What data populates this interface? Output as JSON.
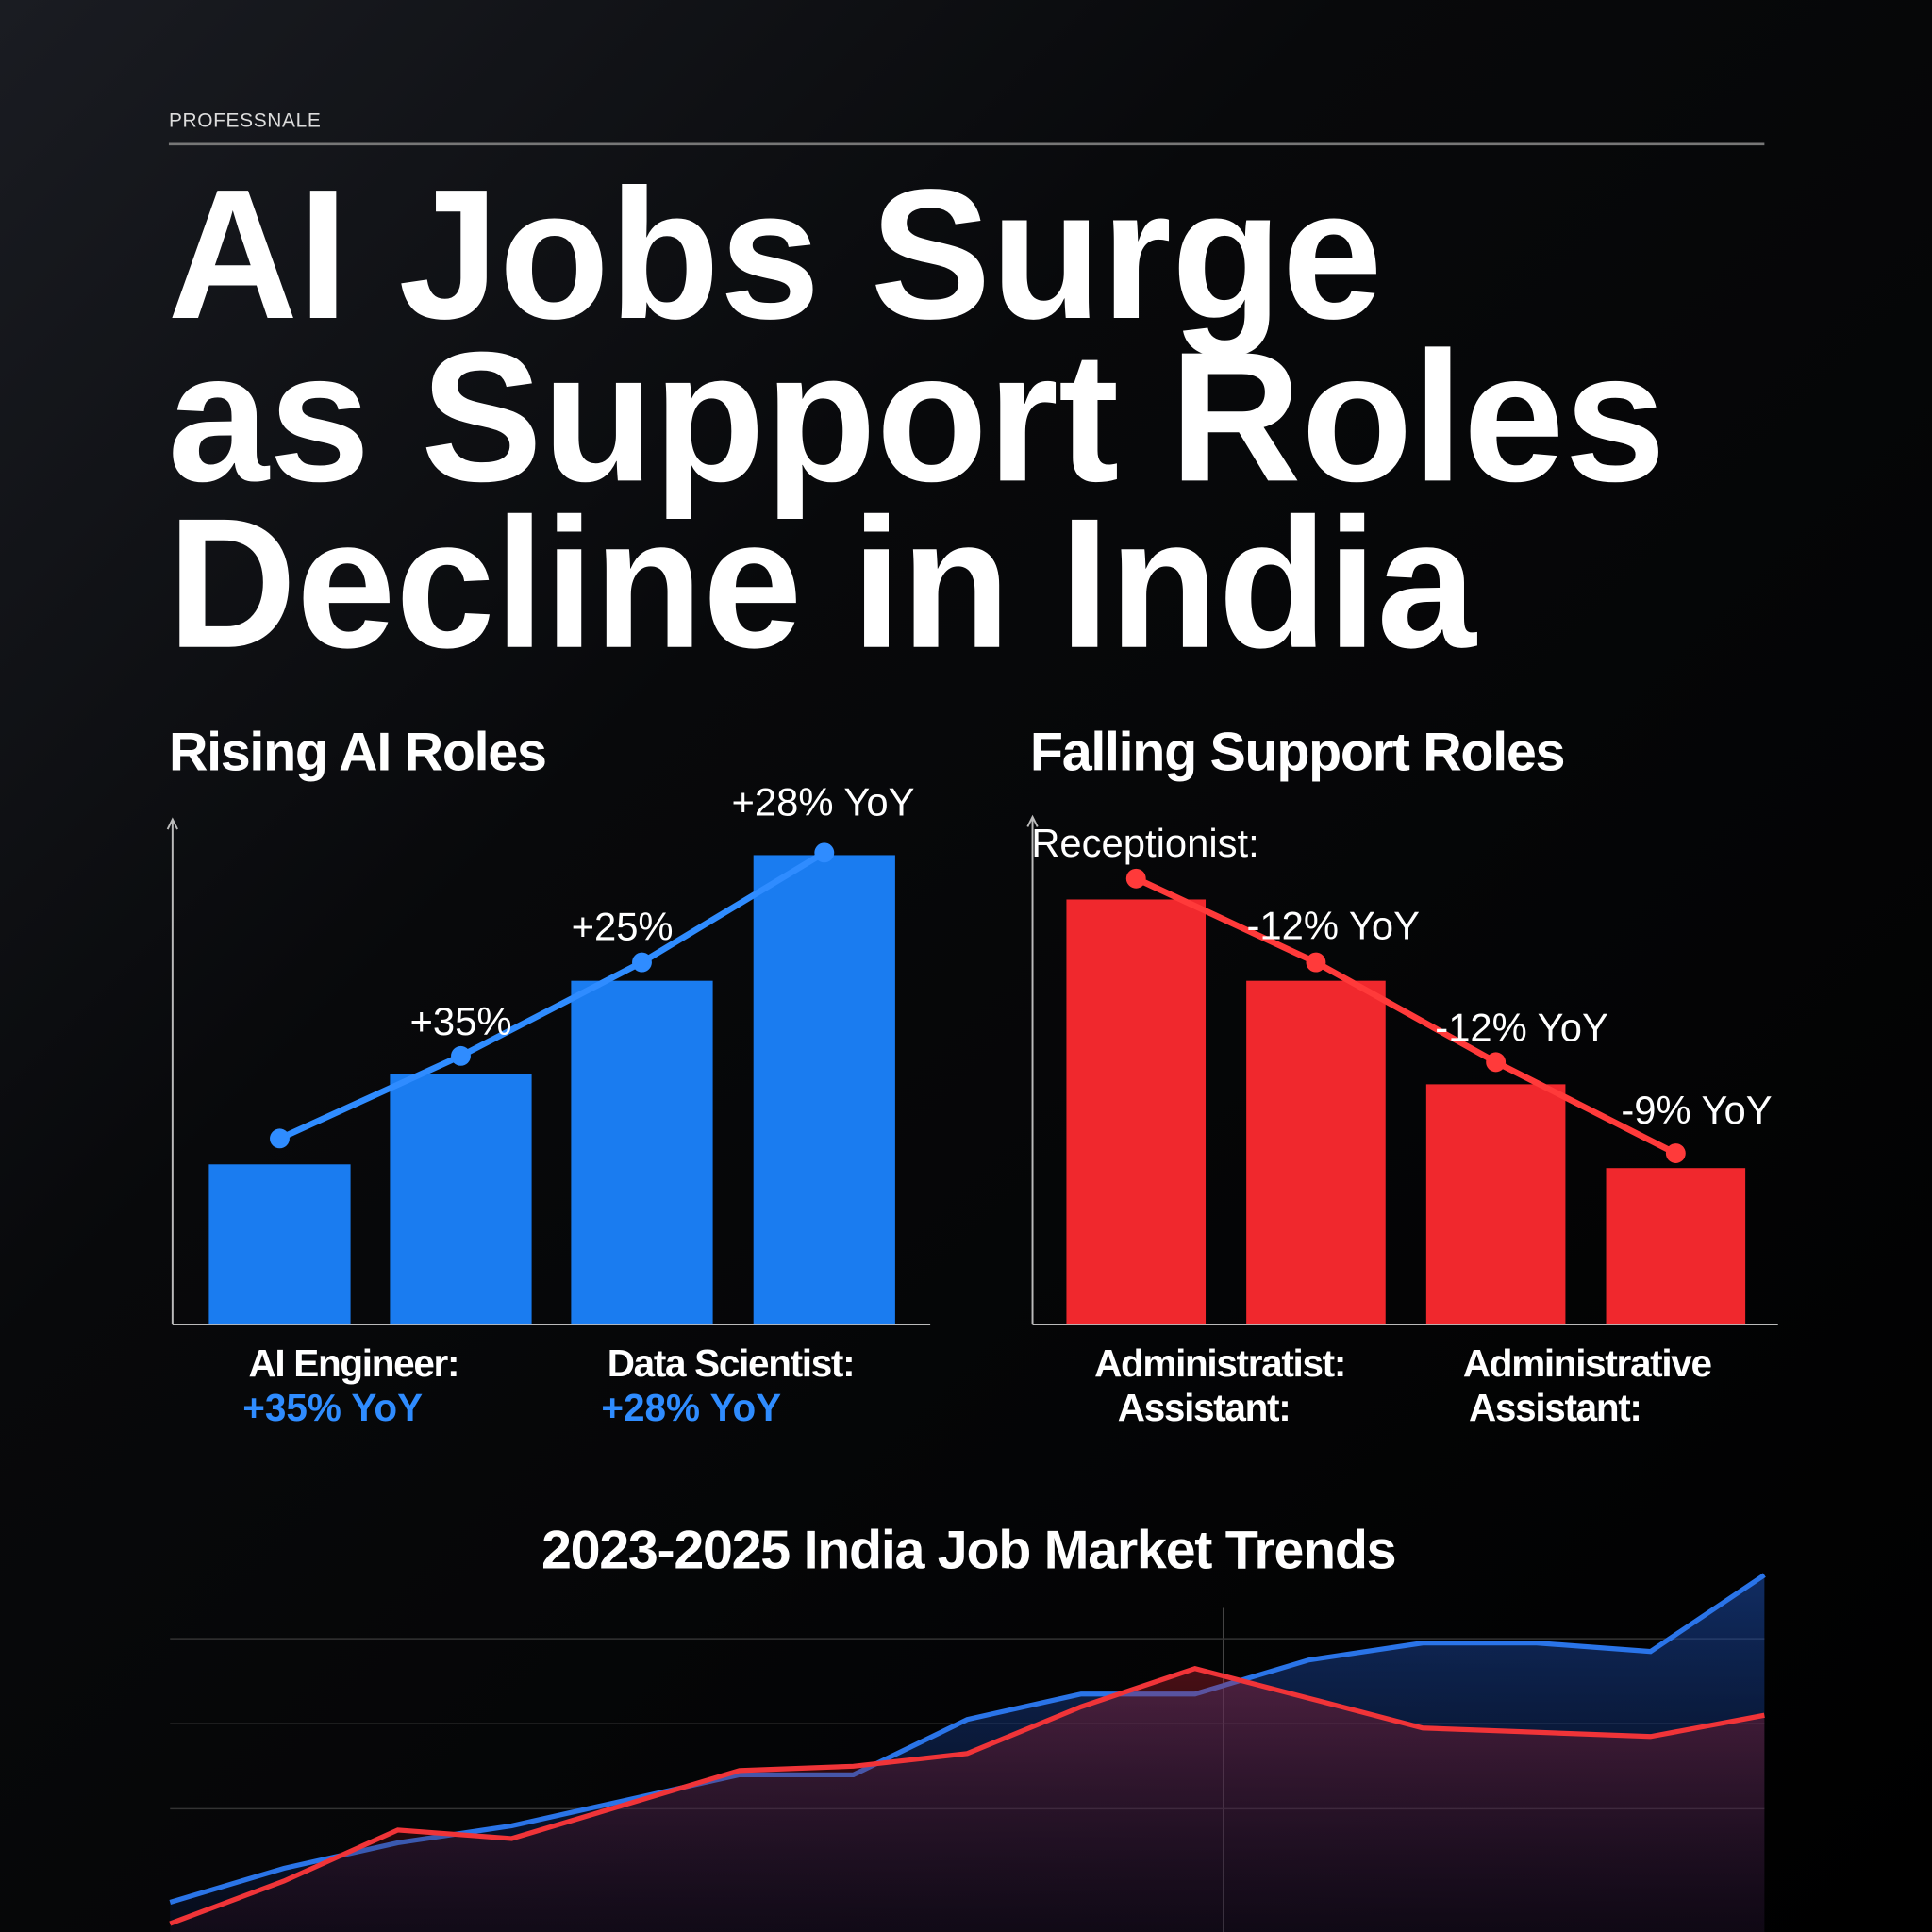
{
  "header": {
    "brand": "PROFESSNALE",
    "headline": [
      "AI Jobs Surge",
      "as Support Roles",
      "Decline in India"
    ]
  },
  "chart_data": [
    {
      "type": "bar",
      "title": "Rising AI Roles",
      "values": [
        130,
        203,
        279,
        381
      ],
      "color": "#1a7cf0",
      "ylim": [
        0,
        410
      ],
      "line": {
        "values": [
          151,
          218,
          294,
          383
        ],
        "color": "#2f8cff",
        "labels": [
          null,
          "+35%",
          "+25%",
          "+28% YoY"
        ]
      },
      "notes": [
        {
          "label": "AI Engineer:",
          "change": "+35% YoY"
        },
        {
          "label": "Data Scientist:",
          "change": "+28% YoY"
        }
      ]
    },
    {
      "type": "bar",
      "title": "Falling Support Roles",
      "values": [
        345,
        279,
        195,
        127
      ],
      "color": "#f0282d",
      "ylim": [
        0,
        412
      ],
      "line": {
        "values": [
          362,
          294,
          213,
          139
        ],
        "color": "#ff3a3a",
        "labels": [
          "Receptionist:",
          "-12% YoY",
          "-12% YoY",
          "-9% YoY"
        ]
      },
      "notes": [
        {
          "lines": [
            "Administratist:",
            "Assistant:"
          ]
        },
        {
          "lines": [
            "Administrative",
            "Assistant:"
          ]
        }
      ]
    },
    {
      "type": "line",
      "title": "2023-2025 India Job Market Trends",
      "ylim": [
        -10,
        80
      ],
      "gridlines": [
        20,
        40,
        60
      ],
      "area": true,
      "series": [
        {
          "color": "#2a74e8",
          "values": [
            -2,
            6,
            12,
            16,
            22,
            28,
            28,
            41,
            47,
            47,
            55,
            59,
            59,
            57,
            75
          ]
        },
        {
          "color": "#f03438",
          "values": [
            -7,
            3,
            15,
            13,
            21,
            29,
            30,
            33,
            44,
            53,
            46,
            39,
            38,
            37,
            42
          ]
        }
      ]
    }
  ]
}
